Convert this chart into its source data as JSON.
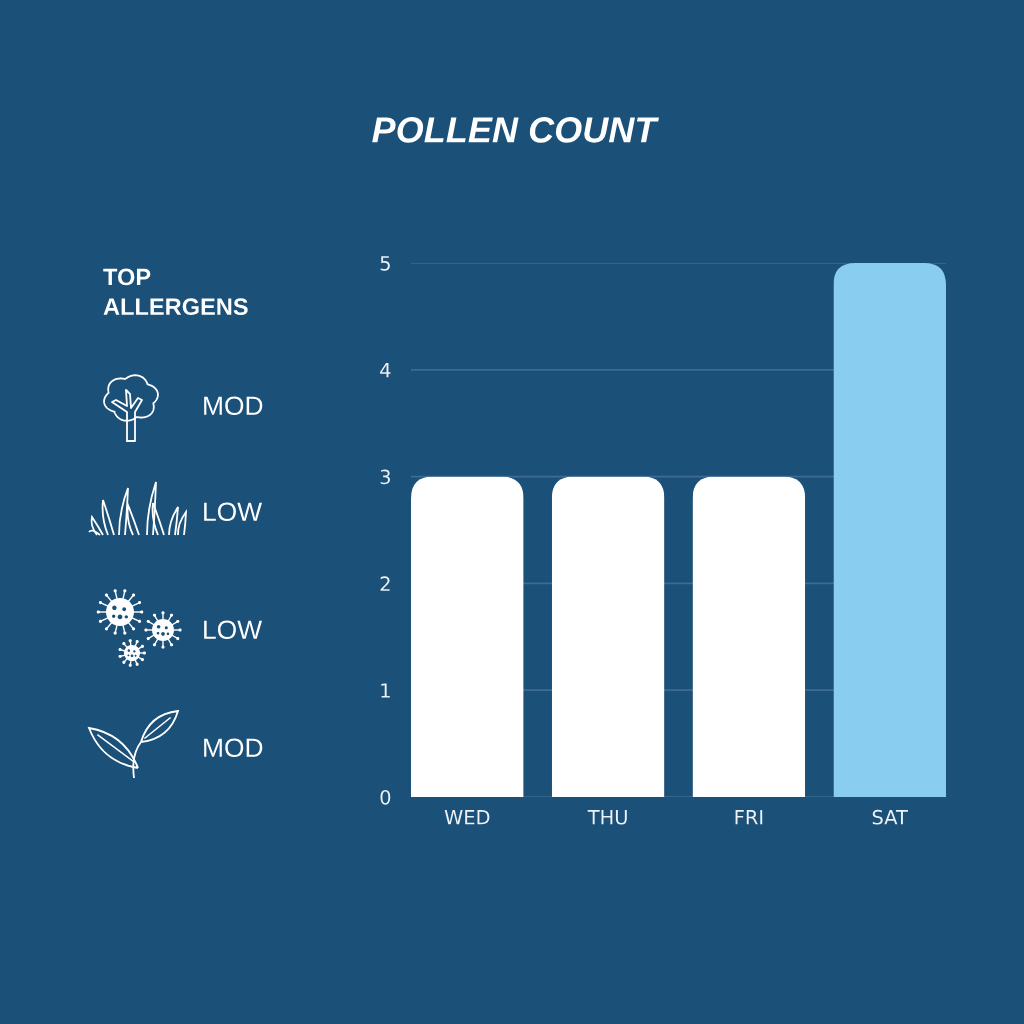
{
  "chart_data": [
    {
      "type": "bar",
      "title": "POLLEN COUNT",
      "categories": [
        "WED",
        "THU",
        "FRI",
        "SAT"
      ],
      "values": [
        3,
        3,
        3,
        5
      ],
      "colors": [
        "#ffffff",
        "#ffffff",
        "#ffffff",
        "#89cdf1"
      ],
      "ylim": [
        0,
        5
      ],
      "yticks": [
        0,
        1,
        2,
        3,
        4,
        5
      ],
      "grid": "y"
    },
    {
      "type": "other",
      "title": "TOP ALLERGENS",
      "annotations": [
        "MOD",
        "LOW",
        "LOW",
        "MOD"
      ]
    }
  ]
}
